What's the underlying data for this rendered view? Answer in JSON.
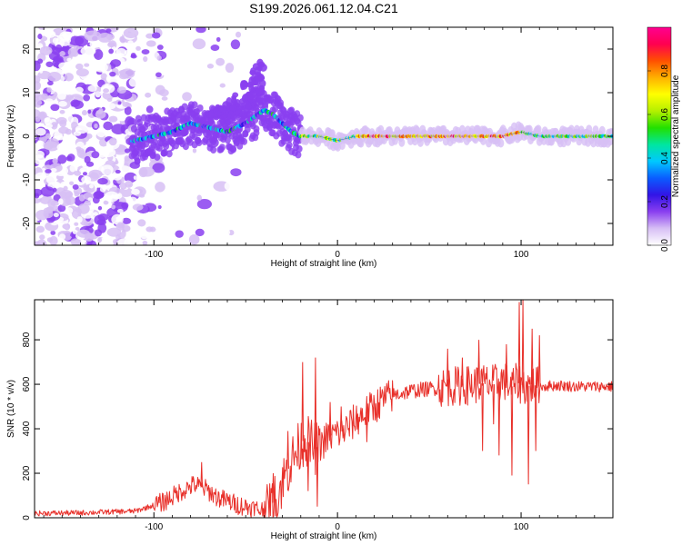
{
  "title": "S199.2026.061.12.04.C21",
  "chart_data": [
    {
      "type": "heatmap",
      "name": "spectrogram",
      "xlabel": "Height of straight line (km)",
      "ylabel": "Frequency (Hz)",
      "xlim": [
        -165,
        150
      ],
      "ylim": [
        -25,
        25
      ],
      "xticks": [
        -100,
        0,
        100
      ],
      "yticks": [
        -20,
        -10,
        0,
        10,
        20
      ],
      "xtick_labels": [
        "-100",
        "0",
        "100"
      ],
      "ytick_labels": [
        "-20",
        "-10",
        "0",
        "10",
        "20"
      ],
      "ridge": {
        "x": [
          -110,
          -100,
          -90,
          -80,
          -70,
          -60,
          -50,
          -40,
          -35,
          -30,
          -25,
          -20,
          -10,
          0,
          10,
          20,
          40,
          60,
          80,
          90,
          100,
          110,
          150
        ],
        "y": [
          -1,
          0,
          1,
          3,
          2,
          1,
          3,
          6,
          5,
          3,
          1,
          0,
          0,
          -1,
          0,
          0,
          0,
          0,
          0,
          0,
          1,
          0,
          0
        ]
      },
      "colorbar": {
        "label": "Normalized spectral amplitude",
        "range": [
          0,
          1
        ],
        "ticks": [
          0.0,
          0.2,
          0.4,
          0.6,
          0.8
        ],
        "tick_labels": [
          "0.0",
          "0.2",
          "0.4",
          "0.6",
          "0.8"
        ],
        "colors": [
          "#ffffff",
          "#d7bff5",
          "#8a3ff0",
          "#3214e6",
          "#0a5cff",
          "#00c8ff",
          "#00e6a0",
          "#22e000",
          "#b4f000",
          "#ffff00",
          "#ffb000",
          "#ff5000",
          "#ff0050",
          "#ff0090"
        ]
      }
    },
    {
      "type": "line",
      "name": "snr",
      "xlabel": "Height of straight line (km)",
      "ylabel": "SNR (10 * v/v)",
      "xlim": [
        -165,
        150
      ],
      "ylim": [
        0,
        980
      ],
      "xticks": [
        -100,
        0,
        100
      ],
      "yticks": [
        0,
        200,
        400,
        600,
        800
      ],
      "xtick_labels": [
        "-100",
        "0",
        "100"
      ],
      "ytick_labels": [
        "0",
        "200",
        "400",
        "600",
        "800"
      ],
      "color": "#e8302a",
      "series": [
        {
          "name": "SNR",
          "x": [
            -165,
            -140,
            -110,
            -95,
            -85,
            -78,
            -72,
            -65,
            -55,
            -45,
            -38,
            -34,
            -30,
            -26,
            -22,
            -18,
            -15,
            -12,
            -8,
            -4,
            0,
            5,
            10,
            15,
            20,
            25,
            30,
            40,
            50,
            60,
            70,
            75,
            80,
            85,
            90,
            95,
            98,
            100,
            103,
            106,
            110,
            120,
            130,
            140,
            150
          ],
          "y": [
            20,
            22,
            30,
            70,
            120,
            150,
            130,
            90,
            60,
            40,
            30,
            80,
            160,
            240,
            300,
            360,
            330,
            310,
            340,
            370,
            380,
            400,
            440,
            470,
            500,
            530,
            550,
            570,
            580,
            590,
            595,
            600,
            605,
            600,
            620,
            590,
            610,
            600,
            590,
            600,
            590,
            595,
            590,
            590,
            590
          ]
        }
      ],
      "spikes": [
        {
          "x": -74,
          "y": 250
        },
        {
          "x": -35,
          "y": 200
        },
        {
          "x": -27,
          "y": 390
        },
        {
          "x": -19,
          "y": 700
        },
        {
          "x": -16,
          "y": 120
        },
        {
          "x": -12,
          "y": 720
        },
        {
          "x": -11,
          "y": 50
        },
        {
          "x": -4,
          "y": 520
        },
        {
          "x": 2,
          "y": 500
        },
        {
          "x": 16,
          "y": 340
        },
        {
          "x": 60,
          "y": 760
        },
        {
          "x": 68,
          "y": 720
        },
        {
          "x": 77,
          "y": 800
        },
        {
          "x": 79,
          "y": 300
        },
        {
          "x": 85,
          "y": 420
        },
        {
          "x": 88,
          "y": 280
        },
        {
          "x": 92,
          "y": 780
        },
        {
          "x": 95,
          "y": 190
        },
        {
          "x": 99,
          "y": 970
        },
        {
          "x": 101,
          "y": 980
        },
        {
          "x": 104,
          "y": 150
        },
        {
          "x": 106,
          "y": 850
        },
        {
          "x": 108,
          "y": 300
        },
        {
          "x": 110,
          "y": 820
        }
      ]
    }
  ]
}
